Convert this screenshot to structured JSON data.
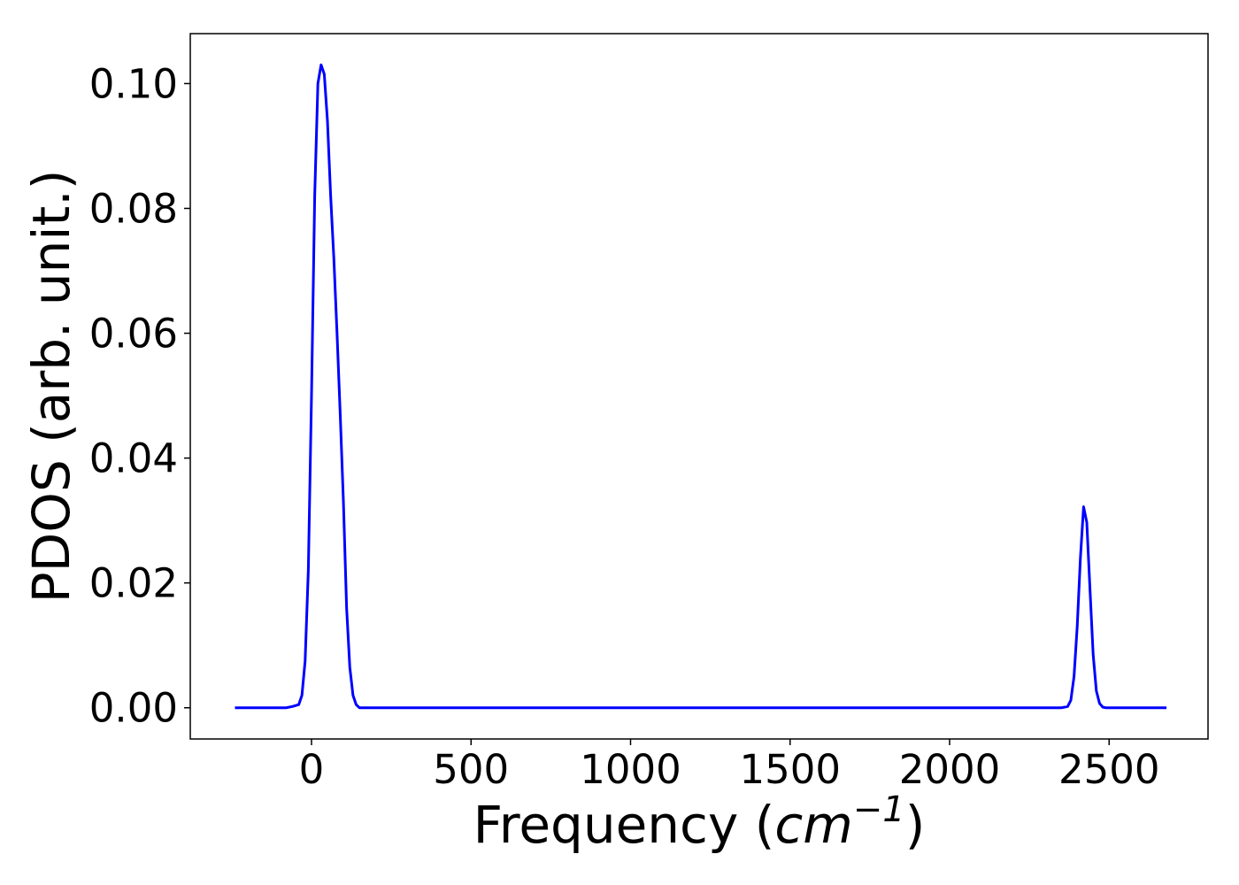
{
  "chart_data": {
    "type": "line",
    "title": "",
    "xlabel": "Frequency (cm⁻¹)",
    "xlabel_parts": {
      "prefix": "Frequency (",
      "unit_base": "cm",
      "unit_exponent": "−1",
      "suffix": ")"
    },
    "ylabel": "PDOS (arb. unit.)",
    "xlim": [
      -380,
      2810
    ],
    "ylim": [
      -0.005,
      0.108
    ],
    "xticks": [
      0,
      500,
      1000,
      1500,
      2000,
      2500
    ],
    "xtick_labels": [
      "0",
      "500",
      "1000",
      "1500",
      "2000",
      "2500"
    ],
    "yticks": [
      0.0,
      0.02,
      0.04,
      0.06,
      0.08,
      0.1
    ],
    "ytick_labels": [
      "0.00",
      "0.02",
      "0.04",
      "0.06",
      "0.08",
      "0.10"
    ],
    "grid": false,
    "legend": "none",
    "series": [
      {
        "color": "#0000ff",
        "x": [
          -240,
          -200,
          -160,
          -120,
          -80,
          -60,
          -40,
          -30,
          -20,
          -10,
          0,
          10,
          20,
          30,
          40,
          50,
          60,
          65,
          70,
          80,
          90,
          100,
          110,
          120,
          130,
          140,
          150,
          160,
          170,
          180,
          190,
          200,
          220,
          260,
          400,
          800,
          1200,
          1600,
          2000,
          2300,
          2350,
          2370,
          2380,
          2390,
          2400,
          2410,
          2420,
          2430,
          2440,
          2450,
          2460,
          2470,
          2480,
          2490,
          2500,
          2510,
          2520,
          2540,
          2600,
          2680
        ],
        "y": [
          0.0,
          0.0,
          0.0,
          0.0,
          0.0,
          0.0002,
          0.0005,
          0.002,
          0.0075,
          0.022,
          0.05,
          0.082,
          0.1,
          0.103,
          0.1015,
          0.094,
          0.082,
          0.077,
          0.072,
          0.06,
          0.047,
          0.033,
          0.016,
          0.0065,
          0.002,
          0.0005,
          0.0,
          0.0,
          0.0,
          0.0,
          0.0,
          0.0,
          0.0,
          0.0,
          0.0,
          0.0,
          0.0,
          0.0,
          0.0,
          0.0,
          0.0,
          0.0002,
          0.0012,
          0.005,
          0.013,
          0.024,
          0.0322,
          0.0297,
          0.019,
          0.0085,
          0.0027,
          0.0007,
          0.0001,
          0.0,
          0.0,
          0.0,
          0.0,
          0.0,
          0.0,
          0.0
        ]
      }
    ]
  }
}
